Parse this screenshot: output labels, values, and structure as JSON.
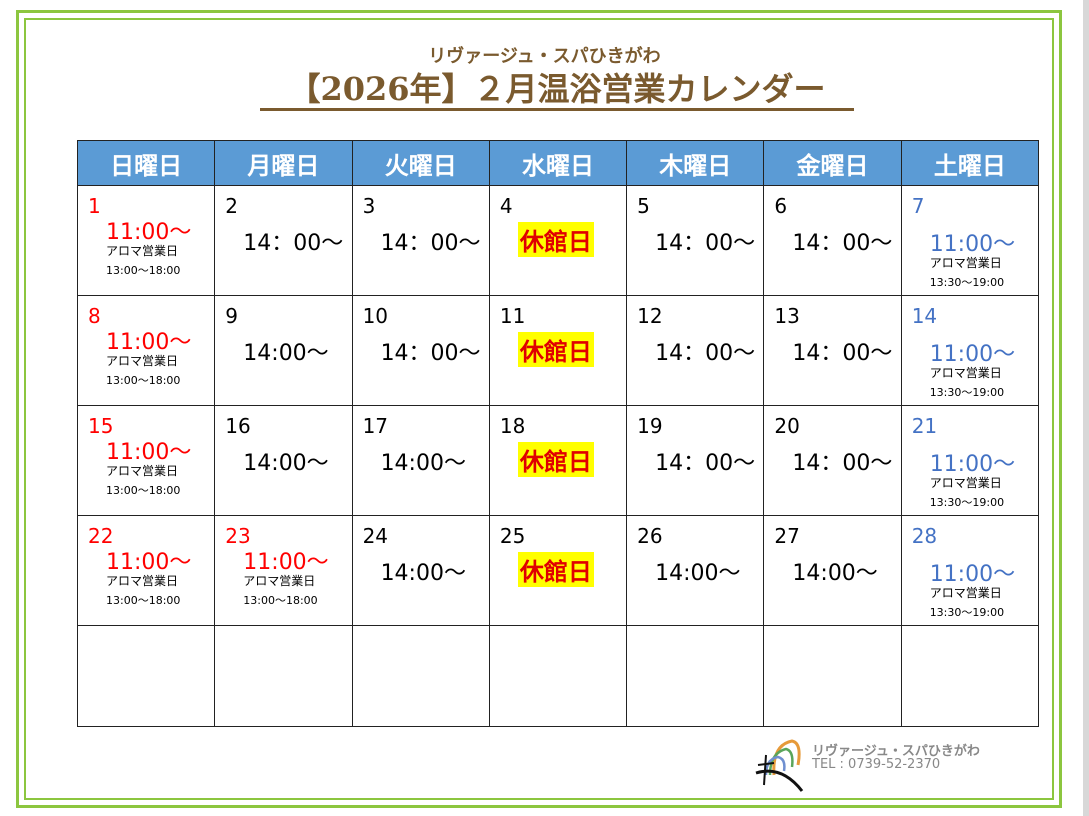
{
  "header": {
    "subtitle": "リヴァージュ・スパひきがわ",
    "title": "【2026年】２月温浴営業カレンダー"
  },
  "weekdays": [
    "日曜日",
    "月曜日",
    "火曜日",
    "水曜日",
    "木曜日",
    "金曜日",
    "土曜日"
  ],
  "colors": {
    "header_bg": "#5b9bd5",
    "sunday_holiday": "#ff0000",
    "saturday": "#4472c4",
    "closed_bg": "#ffff00",
    "frame": "#8cc63f",
    "title": "#7a5a2e"
  },
  "weeks": [
    [
      {
        "day": "1",
        "color": "red",
        "time": "11:00～",
        "note1": "アロマ営業日",
        "note2": "13:00～18:00"
      },
      {
        "day": "2",
        "color": "black",
        "time": "14：00～"
      },
      {
        "day": "3",
        "color": "black",
        "time": "14：00～"
      },
      {
        "day": "4",
        "color": "black",
        "closed": "休館日"
      },
      {
        "day": "5",
        "color": "black",
        "time": "14：00～"
      },
      {
        "day": "6",
        "color": "black",
        "time": "14：00～"
      },
      {
        "day": "7",
        "color": "blue",
        "time": "11:00～",
        "note1": "アロマ営業日",
        "note2": "13:30～19:00"
      }
    ],
    [
      {
        "day": "8",
        "color": "red",
        "time": "11:00～",
        "note1": "アロマ営業日",
        "note2": "13:00～18:00"
      },
      {
        "day": "9",
        "color": "black",
        "time": "14:00～"
      },
      {
        "day": "10",
        "color": "black",
        "time": "14：00～"
      },
      {
        "day": "11",
        "color": "black",
        "closed": "休館日"
      },
      {
        "day": "12",
        "color": "black",
        "time": "14：00～"
      },
      {
        "day": "13",
        "color": "black",
        "time": "14：00～"
      },
      {
        "day": "14",
        "color": "blue",
        "time": "11:00～",
        "note1": "アロマ営業日",
        "note2": "13:30～19:00"
      }
    ],
    [
      {
        "day": "15",
        "color": "red",
        "time": "11:00～",
        "note1": "アロマ営業日",
        "note2": "13:00～18:00"
      },
      {
        "day": "16",
        "color": "black",
        "time": "14:00～"
      },
      {
        "day": "17",
        "color": "black",
        "time": "14:00～"
      },
      {
        "day": "18",
        "color": "black",
        "closed": "休館日"
      },
      {
        "day": "19",
        "color": "black",
        "time": "14：00～"
      },
      {
        "day": "20",
        "color": "black",
        "time": "14：00～"
      },
      {
        "day": "21",
        "color": "blue",
        "time": "11:00～",
        "note1": "アロマ営業日",
        "note2": "13:30～19:00"
      }
    ],
    [
      {
        "day": "22",
        "color": "red",
        "time": "11:00～",
        "note1": "アロマ営業日",
        "note2": "13:00～18:00"
      },
      {
        "day": "23",
        "color": "red",
        "time": "11:00～",
        "note1": "アロマ営業日",
        "note2": "13:00～18:00"
      },
      {
        "day": "24",
        "color": "black",
        "time": "14:00～"
      },
      {
        "day": "25",
        "color": "black",
        "closed": "休館日"
      },
      {
        "day": "26",
        "color": "black",
        "time": "14:00～"
      },
      {
        "day": "27",
        "color": "black",
        "time": "14:00～"
      },
      {
        "day": "28",
        "color": "blue",
        "time": "11:00～",
        "note1": "アロマ営業日",
        "note2": "13:30～19:00"
      }
    ]
  ],
  "footer": {
    "name": "リヴァージュ・スパひきがわ",
    "tel": "TEL : 0739-52-2370"
  }
}
